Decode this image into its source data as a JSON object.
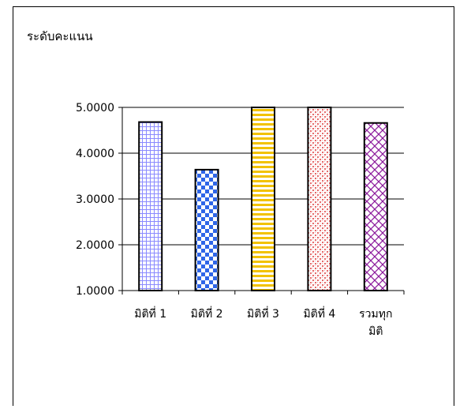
{
  "chart_data": {
    "type": "bar",
    "ylabel": "ระดับคะแนน",
    "categories": [
      [
        "มิติที่ 1"
      ],
      [
        "มิติที่ 2"
      ],
      [
        "มิติที่ 3"
      ],
      [
        "มิติที่ 4"
      ],
      [
        "รวมทุก",
        "มิติ"
      ]
    ],
    "values": [
      4.68,
      3.64,
      5.0,
      5.0,
      4.66
    ],
    "ylim": [
      1.0,
      5.0
    ],
    "yticks": [
      "1.0000",
      "2.0000",
      "3.0000",
      "4.0000",
      "5.0000"
    ],
    "grid": true,
    "bar_styles": [
      {
        "pattern": "grid",
        "color": "#8a8aff"
      },
      {
        "pattern": "checker",
        "color": "#2f66e8"
      },
      {
        "pattern": "hstripes",
        "color": "#f2c200"
      },
      {
        "pattern": "dots",
        "color": "#e56b6b"
      },
      {
        "pattern": "diagonal-cross",
        "color": "#8e1f9e"
      }
    ]
  }
}
